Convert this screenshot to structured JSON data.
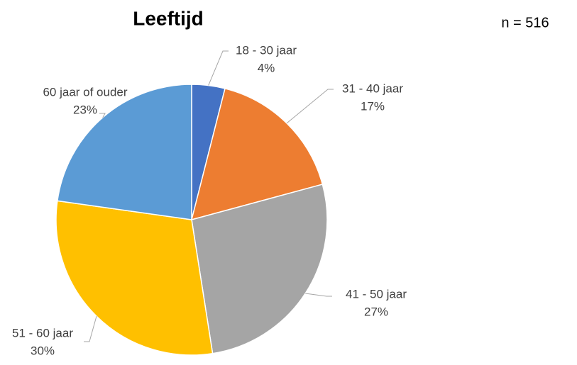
{
  "chart_data": {
    "type": "pie",
    "title": "Leeftijd",
    "annotation": "n = 516",
    "categories": [
      "18 - 30 jaar",
      "31 - 40 jaar",
      "41 - 50 jaar",
      "51 - 60 jaar",
      "60 jaar of ouder"
    ],
    "values": [
      4,
      17,
      27,
      30,
      23
    ],
    "value_labels": [
      "4%",
      "17%",
      "27%",
      "30%",
      "23%"
    ],
    "colors": [
      "#4472c4",
      "#ed7d31",
      "#a5a5a5",
      "#ffc000",
      "#5b9bd5"
    ]
  }
}
